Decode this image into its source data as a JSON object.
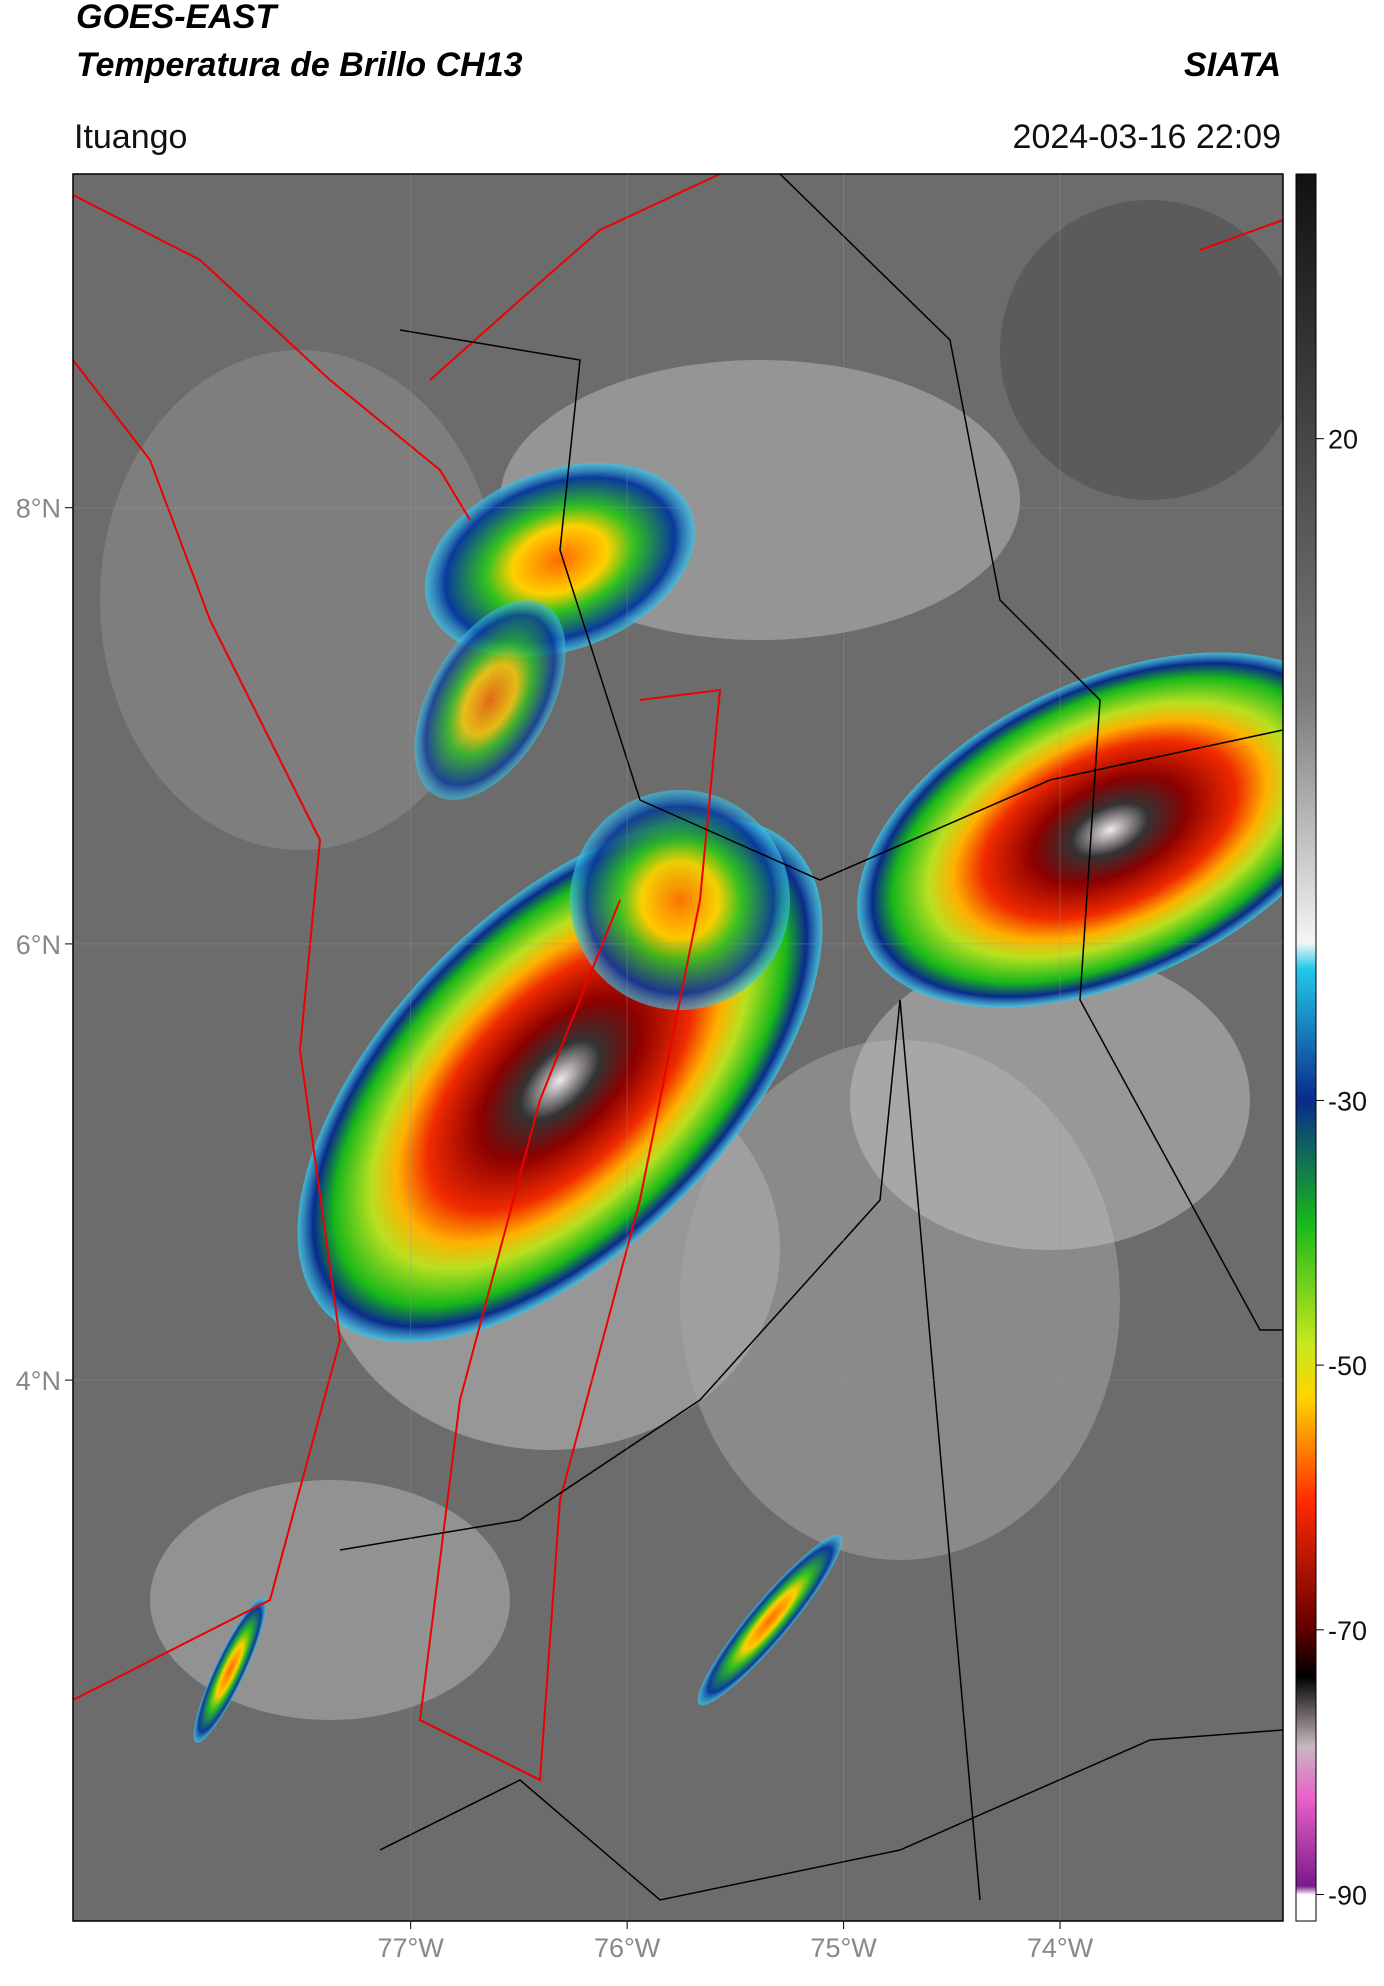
{
  "header": {
    "line1": "GOES-EAST",
    "line2": "Temperatura de Brillo CH13",
    "brand": "SIATA",
    "location": "Ituango",
    "datetime": "2024-03-16 22:09"
  },
  "map": {
    "lonlim": [
      -78.56,
      -72.97
    ],
    "latlim": [
      1.52,
      9.53
    ],
    "lonticks": [
      {
        "value": -77,
        "label": "77°W"
      },
      {
        "value": -76,
        "label": "76°W"
      },
      {
        "value": -75,
        "label": "75°W"
      },
      {
        "value": -74,
        "label": "74°W"
      }
    ],
    "latticks": [
      {
        "value": 8,
        "label": "8°N"
      },
      {
        "value": 6,
        "label": "6°N"
      },
      {
        "value": 4,
        "label": "4°N"
      }
    ],
    "grid": true
  },
  "colorbar": {
    "lim": [
      -92,
      40
    ],
    "ticks": [
      20,
      -30,
      -50,
      -70,
      -90
    ]
  }
}
